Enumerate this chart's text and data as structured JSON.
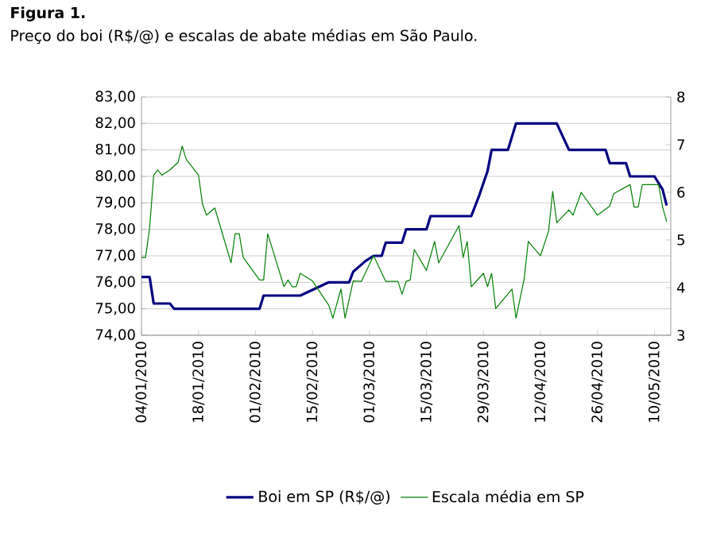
{
  "chart_data": {
    "type": "line",
    "title": "Figura 1.",
    "subtitle": "Preço do boi (R$/@) e escalas de abate médias em São Paulo.",
    "xlim": [
      "2010-01-04",
      "2010-05-14"
    ],
    "xticks": [
      {
        "value": "2010-01-04",
        "label": "04/01/2010"
      },
      {
        "value": "2010-01-18",
        "label": "18/01/2010"
      },
      {
        "value": "2010-02-01",
        "label": "01/02/2010"
      },
      {
        "value": "2010-02-15",
        "label": "15/02/2010"
      },
      {
        "value": "2010-03-01",
        "label": "01/03/2010"
      },
      {
        "value": "2010-03-15",
        "label": "15/03/2010"
      },
      {
        "value": "2010-03-29",
        "label": "29/03/2010"
      },
      {
        "value": "2010-04-12",
        "label": "12/04/2010"
      },
      {
        "value": "2010-04-26",
        "label": "26/04/2010"
      },
      {
        "value": "2010-05-10",
        "label": "10/05/2010"
      }
    ],
    "ylim": [
      74,
      83
    ],
    "yticks": [
      {
        "value": 74,
        "label": "74,00"
      },
      {
        "value": 75,
        "label": "75,00"
      },
      {
        "value": 76,
        "label": "76,00"
      },
      {
        "value": 77,
        "label": "77,00"
      },
      {
        "value": 78,
        "label": "78,00"
      },
      {
        "value": 79,
        "label": "79,00"
      },
      {
        "value": 80,
        "label": "80,00"
      },
      {
        "value": 81,
        "label": "81,00"
      },
      {
        "value": 82,
        "label": "82,00"
      },
      {
        "value": 83,
        "label": "83,00"
      }
    ],
    "y2lim": [
      3,
      8
    ],
    "y2ticks": [
      3,
      4,
      5,
      6,
      7,
      8
    ],
    "grid": "y",
    "legend": "bottom",
    "marker": "none",
    "line_style": "solid",
    "series": [
      {
        "name": "Boi em SP (R$/@)",
        "color": "#000080",
        "x": [
          "2010-01-04",
          "2010-01-06",
          "2010-01-07",
          "2010-01-11",
          "2010-01-12",
          "2010-02-02",
          "2010-02-03",
          "2010-02-12",
          "2010-02-19",
          "2010-02-24",
          "2010-02-25",
          "2010-02-28",
          "2010-03-02",
          "2010-03-04",
          "2010-03-05",
          "2010-03-09",
          "2010-03-10",
          "2010-03-15",
          "2010-03-16",
          "2010-03-26",
          "2010-03-28",
          "2010-03-30",
          "2010-03-31",
          "2010-04-04",
          "2010-04-06",
          "2010-04-16",
          "2010-04-19",
          "2010-04-28",
          "2010-04-29",
          "2010-05-03",
          "2010-05-04",
          "2010-05-10",
          "2010-05-12",
          "2010-05-13"
        ],
        "values": [
          76.2,
          76.2,
          75.2,
          75.2,
          75.0,
          75.0,
          75.5,
          75.5,
          76.0,
          76.0,
          76.4,
          76.8,
          77.0,
          77.0,
          77.5,
          77.5,
          78.0,
          78.0,
          78.5,
          78.5,
          79.3,
          80.2,
          81.0,
          81.0,
          82.0,
          82.0,
          81.0,
          81.0,
          80.5,
          80.5,
          80.0,
          80.0,
          79.5,
          78.9
        ]
      },
      {
        "name": "Escala média em SP",
        "color": "#008000",
        "axis": "y2",
        "x": [
          "2010-01-04",
          "2010-01-05",
          "2010-01-06",
          "2010-01-07",
          "2010-01-08",
          "2010-01-09",
          "2010-01-11",
          "2010-01-13",
          "2010-01-14",
          "2010-01-15",
          "2010-01-18",
          "2010-01-19",
          "2010-01-20",
          "2010-01-22",
          "2010-01-26",
          "2010-01-27",
          "2010-01-28",
          "2010-01-29",
          "2010-02-02",
          "2010-02-03",
          "2010-02-04",
          "2010-02-08",
          "2010-02-09",
          "2010-02-10",
          "2010-02-11",
          "2010-02-12",
          "2010-02-15",
          "2010-02-19",
          "2010-02-20",
          "2010-02-22",
          "2010-02-23",
          "2010-02-25",
          "2010-02-27",
          "2010-03-02",
          "2010-03-05",
          "2010-03-08",
          "2010-03-09",
          "2010-03-10",
          "2010-03-11",
          "2010-03-12",
          "2010-03-15",
          "2010-03-17",
          "2010-03-18",
          "2010-03-23",
          "2010-03-24",
          "2010-03-25",
          "2010-03-26",
          "2010-03-29",
          "2010-03-30",
          "2010-03-31",
          "2010-04-01",
          "2010-04-05",
          "2010-04-06",
          "2010-04-08",
          "2010-04-09",
          "2010-04-12",
          "2010-04-14",
          "2010-04-15",
          "2010-04-16",
          "2010-04-19",
          "2010-04-20",
          "2010-04-22",
          "2010-04-26",
          "2010-04-29",
          "2010-04-30",
          "2010-05-04",
          "2010-05-05",
          "2010-05-06",
          "2010-05-07",
          "2010-05-11",
          "2010-05-12",
          "2010-05-13"
        ],
        "values": [
          4.63,
          4.63,
          5.25,
          6.36,
          6.47,
          6.36,
          6.47,
          6.63,
          6.97,
          6.69,
          6.36,
          5.75,
          5.52,
          5.67,
          4.52,
          5.13,
          5.13,
          4.63,
          4.16,
          4.16,
          5.13,
          4.02,
          4.16,
          4.02,
          4.02,
          4.3,
          4.14,
          3.63,
          3.36,
          3.97,
          3.36,
          4.14,
          4.13,
          4.67,
          4.13,
          4.13,
          3.86,
          4.13,
          4.16,
          4.8,
          4.36,
          4.97,
          4.52,
          5.3,
          4.63,
          4.97,
          4.02,
          4.3,
          4.02,
          4.3,
          3.56,
          3.97,
          3.36,
          4.19,
          4.97,
          4.67,
          5.19,
          6.02,
          5.36,
          5.63,
          5.52,
          6.0,
          5.52,
          5.71,
          5.97,
          6.16,
          5.69,
          5.69,
          6.16,
          6.16,
          5.69,
          5.38
        ]
      }
    ]
  }
}
